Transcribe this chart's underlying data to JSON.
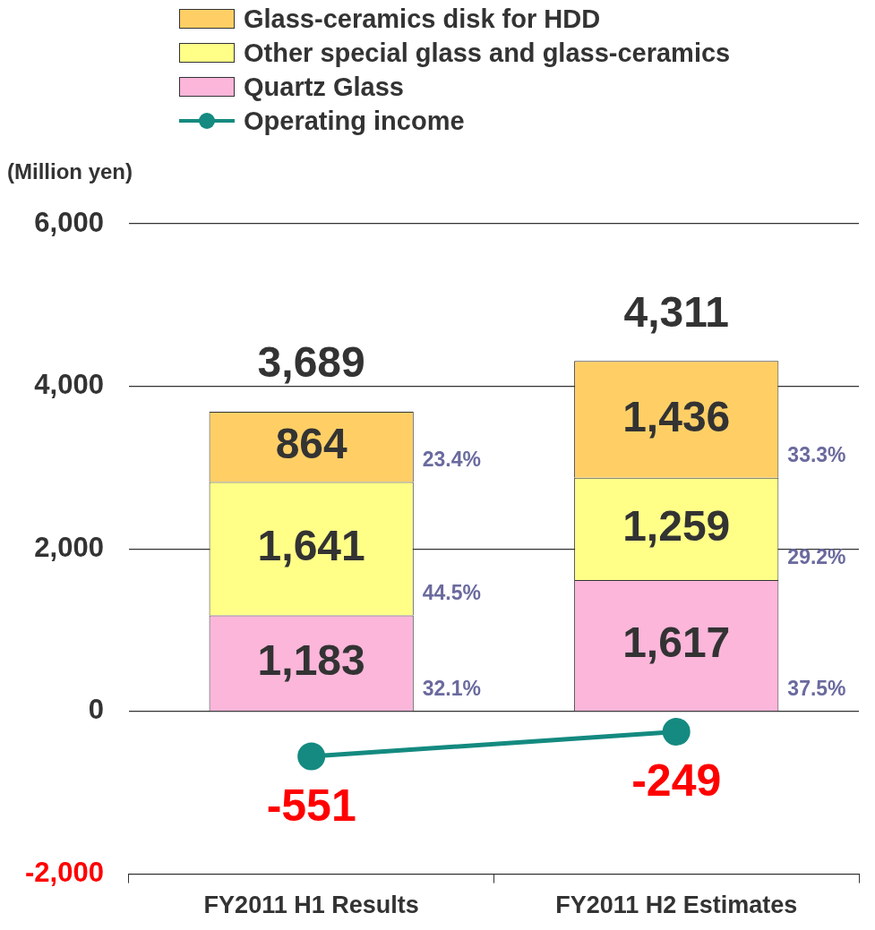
{
  "chart_data": {
    "type": "bar",
    "stacked": true,
    "ylabel": "(Million yen)",
    "categories": [
      "FY2011 H1 Results",
      "FY2011 H2 Estimates"
    ],
    "series": [
      {
        "name": "Quartz Glass",
        "color": "#fbb6da",
        "values": [
          1183,
          1617
        ],
        "value_labels": [
          "1,183",
          "1,617"
        ]
      },
      {
        "name": "Other special glass and glass-ceramics",
        "color": "#ffff88",
        "values": [
          1641,
          1259
        ],
        "value_labels": [
          "1,641",
          "1,259"
        ]
      },
      {
        "name": "Glass-ceramics disk for HDD",
        "color": "#ffcf66",
        "values": [
          864,
          1436
        ],
        "value_labels": [
          "864",
          "1,436"
        ]
      },
      {
        "name": "Operating income",
        "type": "line",
        "color": "#148a80",
        "values": [
          -551,
          -249
        ],
        "value_labels": [
          "-551",
          "-249"
        ]
      }
    ],
    "totals": [
      "3,689",
      "4,311"
    ],
    "marker": "circle",
    "ylim": [
      -2000,
      6000
    ],
    "yticks": [
      {
        "value": -2000,
        "label": "-2,000"
      },
      {
        "value": 0,
        "label": "0"
      },
      {
        "value": 2000,
        "label": "2,000"
      },
      {
        "value": 4000,
        "label": "4,000"
      },
      {
        "value": 6000,
        "label": "6,000"
      }
    ],
    "grid": "y",
    "legend": "top left",
    "annotations": [
      "23.4%",
      "44.5%",
      "32.1%",
      "33.3%",
      "29.2%",
      "37.5%"
    ]
  }
}
